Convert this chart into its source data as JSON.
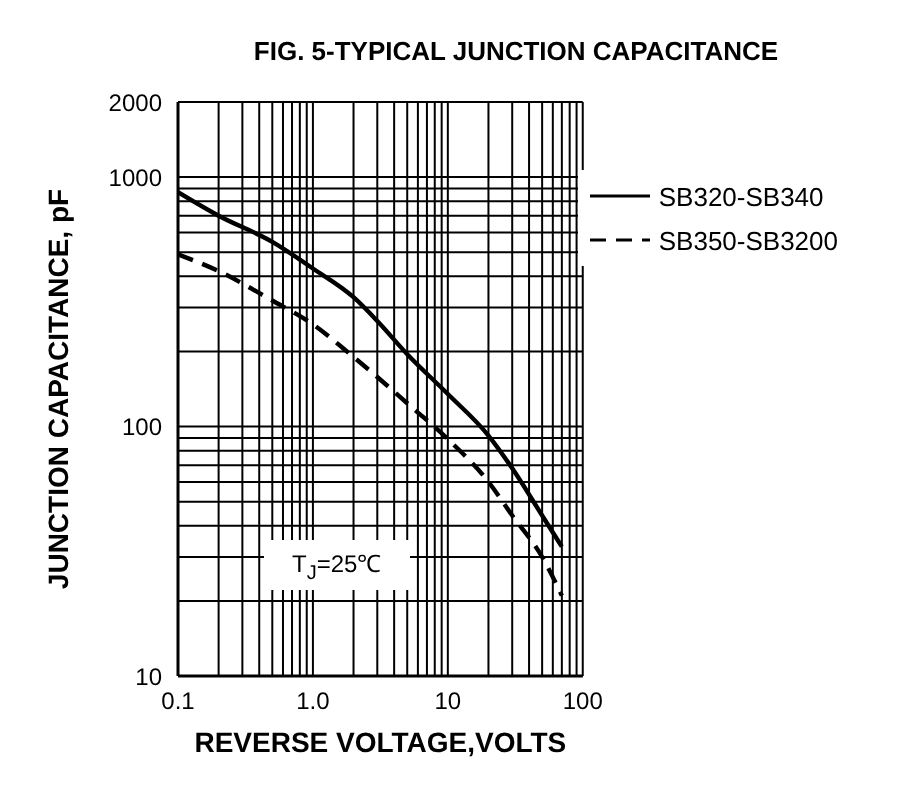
{
  "chart_data": {
    "type": "line",
    "title": "FIG. 5-TYPICAL JUNCTION CAPACITANCE",
    "xlabel": "REVERSE VOLTAGE,VOLTS",
    "ylabel": "JUNCTION CAPACITANCE, pF",
    "log": "xy",
    "grid": true,
    "legend": "top right",
    "marker": "none",
    "xlim": [
      0.1,
      100
    ],
    "ylim": [
      10,
      2000
    ],
    "xticks": [
      0.1,
      {
        "value": 0.2,
        "label": null
      },
      {
        "value": 0.3,
        "label": null
      },
      {
        "value": 0.4,
        "label": null
      },
      {
        "value": 0.5,
        "label": null
      },
      {
        "value": 0.6,
        "label": null
      },
      {
        "value": 0.7,
        "label": null
      },
      {
        "value": 0.8,
        "label": null
      },
      {
        "value": 0.9,
        "label": null
      },
      {
        "value": 1,
        "label": "1.0"
      },
      {
        "value": 2,
        "label": null
      },
      {
        "value": 3,
        "label": null
      },
      {
        "value": 4,
        "label": null
      },
      {
        "value": 5,
        "label": null
      },
      {
        "value": 6,
        "label": null
      },
      {
        "value": 7,
        "label": null
      },
      {
        "value": 8,
        "label": null
      },
      {
        "value": 9,
        "label": null
      },
      10,
      {
        "value": 20,
        "label": null
      },
      {
        "value": 30,
        "label": null
      },
      {
        "value": 40,
        "label": null
      },
      {
        "value": 50,
        "label": null
      },
      {
        "value": 60,
        "label": null
      },
      {
        "value": 70,
        "label": null
      },
      {
        "value": 80,
        "label": null
      },
      {
        "value": 90,
        "label": null
      },
      100
    ],
    "yticks": [
      10,
      {
        "value": 20,
        "label": null
      },
      {
        "value": 30,
        "label": null
      },
      {
        "value": 40,
        "label": null
      },
      {
        "value": 50,
        "label": null
      },
      {
        "value": 60,
        "label": null
      },
      {
        "value": 70,
        "label": null
      },
      {
        "value": 80,
        "label": null
      },
      {
        "value": 90,
        "label": null
      },
      100,
      {
        "value": 200,
        "label": null
      },
      {
        "value": 300,
        "label": null
      },
      {
        "value": 400,
        "label": null
      },
      {
        "value": 500,
        "label": null
      },
      {
        "value": 600,
        "label": null
      },
      {
        "value": 700,
        "label": null
      },
      {
        "value": 800,
        "label": null
      },
      {
        "value": 900,
        "label": null
      },
      1000,
      2000
    ],
    "series": [
      {
        "name": "SB320-SB340",
        "color": "#000000",
        "line_style": "solid",
        "x": [
          0.1,
          0.2,
          0.5,
          1,
          2,
          3,
          5,
          10,
          20,
          30,
          50,
          70
        ],
        "values": [
          870,
          700,
          550,
          430,
          330,
          265,
          195,
          135,
          92,
          68,
          44,
          33
        ]
      },
      {
        "name": "SB350-SB3200",
        "color": "#000000",
        "line_style": "dashed",
        "x": [
          0.1,
          0.2,
          0.5,
          1,
          2,
          3,
          5,
          10,
          20,
          30,
          50,
          70
        ],
        "values": [
          490,
          420,
          320,
          257,
          190,
          158,
          124,
          89,
          60,
          44,
          30,
          21
        ]
      }
    ],
    "annotations": [
      "T$_{J}$=25℃"
    ]
  }
}
